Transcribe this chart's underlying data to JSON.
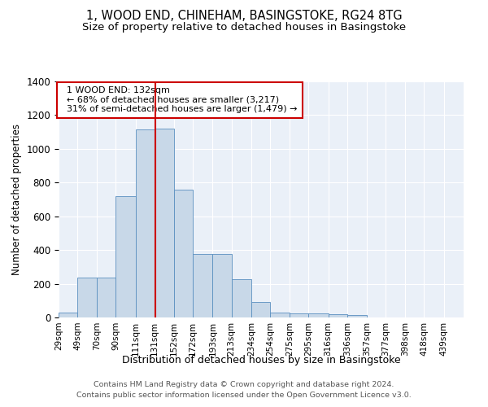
{
  "title": "1, WOOD END, CHINEHAM, BASINGSTOKE, RG24 8TG",
  "subtitle": "Size of property relative to detached houses in Basingstoke",
  "xlabel": "Distribution of detached houses by size in Basingstoke",
  "ylabel": "Number of detached properties",
  "footnote1": "Contains HM Land Registry data © Crown copyright and database right 2024.",
  "footnote2": "Contains public sector information licensed under the Open Government Licence v3.0.",
  "annotation_line1": "1 WOOD END: 132sqm",
  "annotation_line2": "← 68% of detached houses are smaller (3,217)",
  "annotation_line3": "31% of semi-detached houses are larger (1,479) →",
  "bar_color": "#c8d8e8",
  "bar_edge_color": "#5a8fc0",
  "ref_line_color": "#cc0000",
  "ref_line_x": 132,
  "bins": [
    29,
    49,
    70,
    90,
    111,
    131,
    152,
    172,
    193,
    213,
    234,
    254,
    275,
    295,
    316,
    336,
    357,
    377,
    398,
    418,
    439
  ],
  "counts": [
    30,
    235,
    235,
    720,
    1115,
    1120,
    760,
    375,
    375,
    225,
    90,
    30,
    25,
    25,
    20,
    15,
    0,
    0,
    0,
    0
  ],
  "ylim": [
    0,
    1400
  ],
  "yticks": [
    0,
    200,
    400,
    600,
    800,
    1000,
    1200,
    1400
  ],
  "background_color": "#eaf0f8",
  "title_fontsize": 10.5,
  "subtitle_fontsize": 9.5
}
